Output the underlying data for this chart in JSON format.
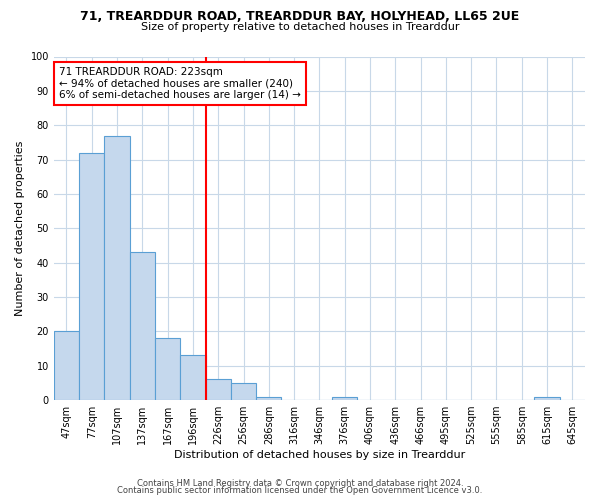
{
  "title_line1": "71, TREARDDUR ROAD, TREARDDUR BAY, HOLYHEAD, LL65 2UE",
  "title_line2": "Size of property relative to detached houses in Trearddur",
  "xlabel": "Distribution of detached houses by size in Trearddur",
  "ylabel": "Number of detached properties",
  "bar_labels": [
    "47sqm",
    "77sqm",
    "107sqm",
    "137sqm",
    "167sqm",
    "196sqm",
    "226sqm",
    "256sqm",
    "286sqm",
    "316sqm",
    "346sqm",
    "376sqm",
    "406sqm",
    "436sqm",
    "466sqm",
    "495sqm",
    "525sqm",
    "555sqm",
    "585sqm",
    "615sqm",
    "645sqm"
  ],
  "bar_heights": [
    20,
    72,
    77,
    43,
    18,
    13,
    6,
    5,
    1,
    0,
    0,
    1,
    0,
    0,
    0,
    0,
    0,
    0,
    0,
    1,
    0
  ],
  "bar_color": "#c5d8ed",
  "bar_edge_color": "#5a9fd4",
  "vline_index": 6,
  "vline_color": "red",
  "annotation_title": "71 TREARDDUR ROAD: 223sqm",
  "annotation_line1": "← 94% of detached houses are smaller (240)",
  "annotation_line2": "6% of semi-detached houses are larger (14) →",
  "annotation_box_color": "white",
  "annotation_box_edgecolor": "red",
  "ylim": [
    0,
    100
  ],
  "yticks": [
    0,
    10,
    20,
    30,
    40,
    50,
    60,
    70,
    80,
    90,
    100
  ],
  "footer_line1": "Contains HM Land Registry data © Crown copyright and database right 2024.",
  "footer_line2": "Contains public sector information licensed under the Open Government Licence v3.0.",
  "background_color": "#ffffff",
  "grid_color": "#c8d8e8"
}
